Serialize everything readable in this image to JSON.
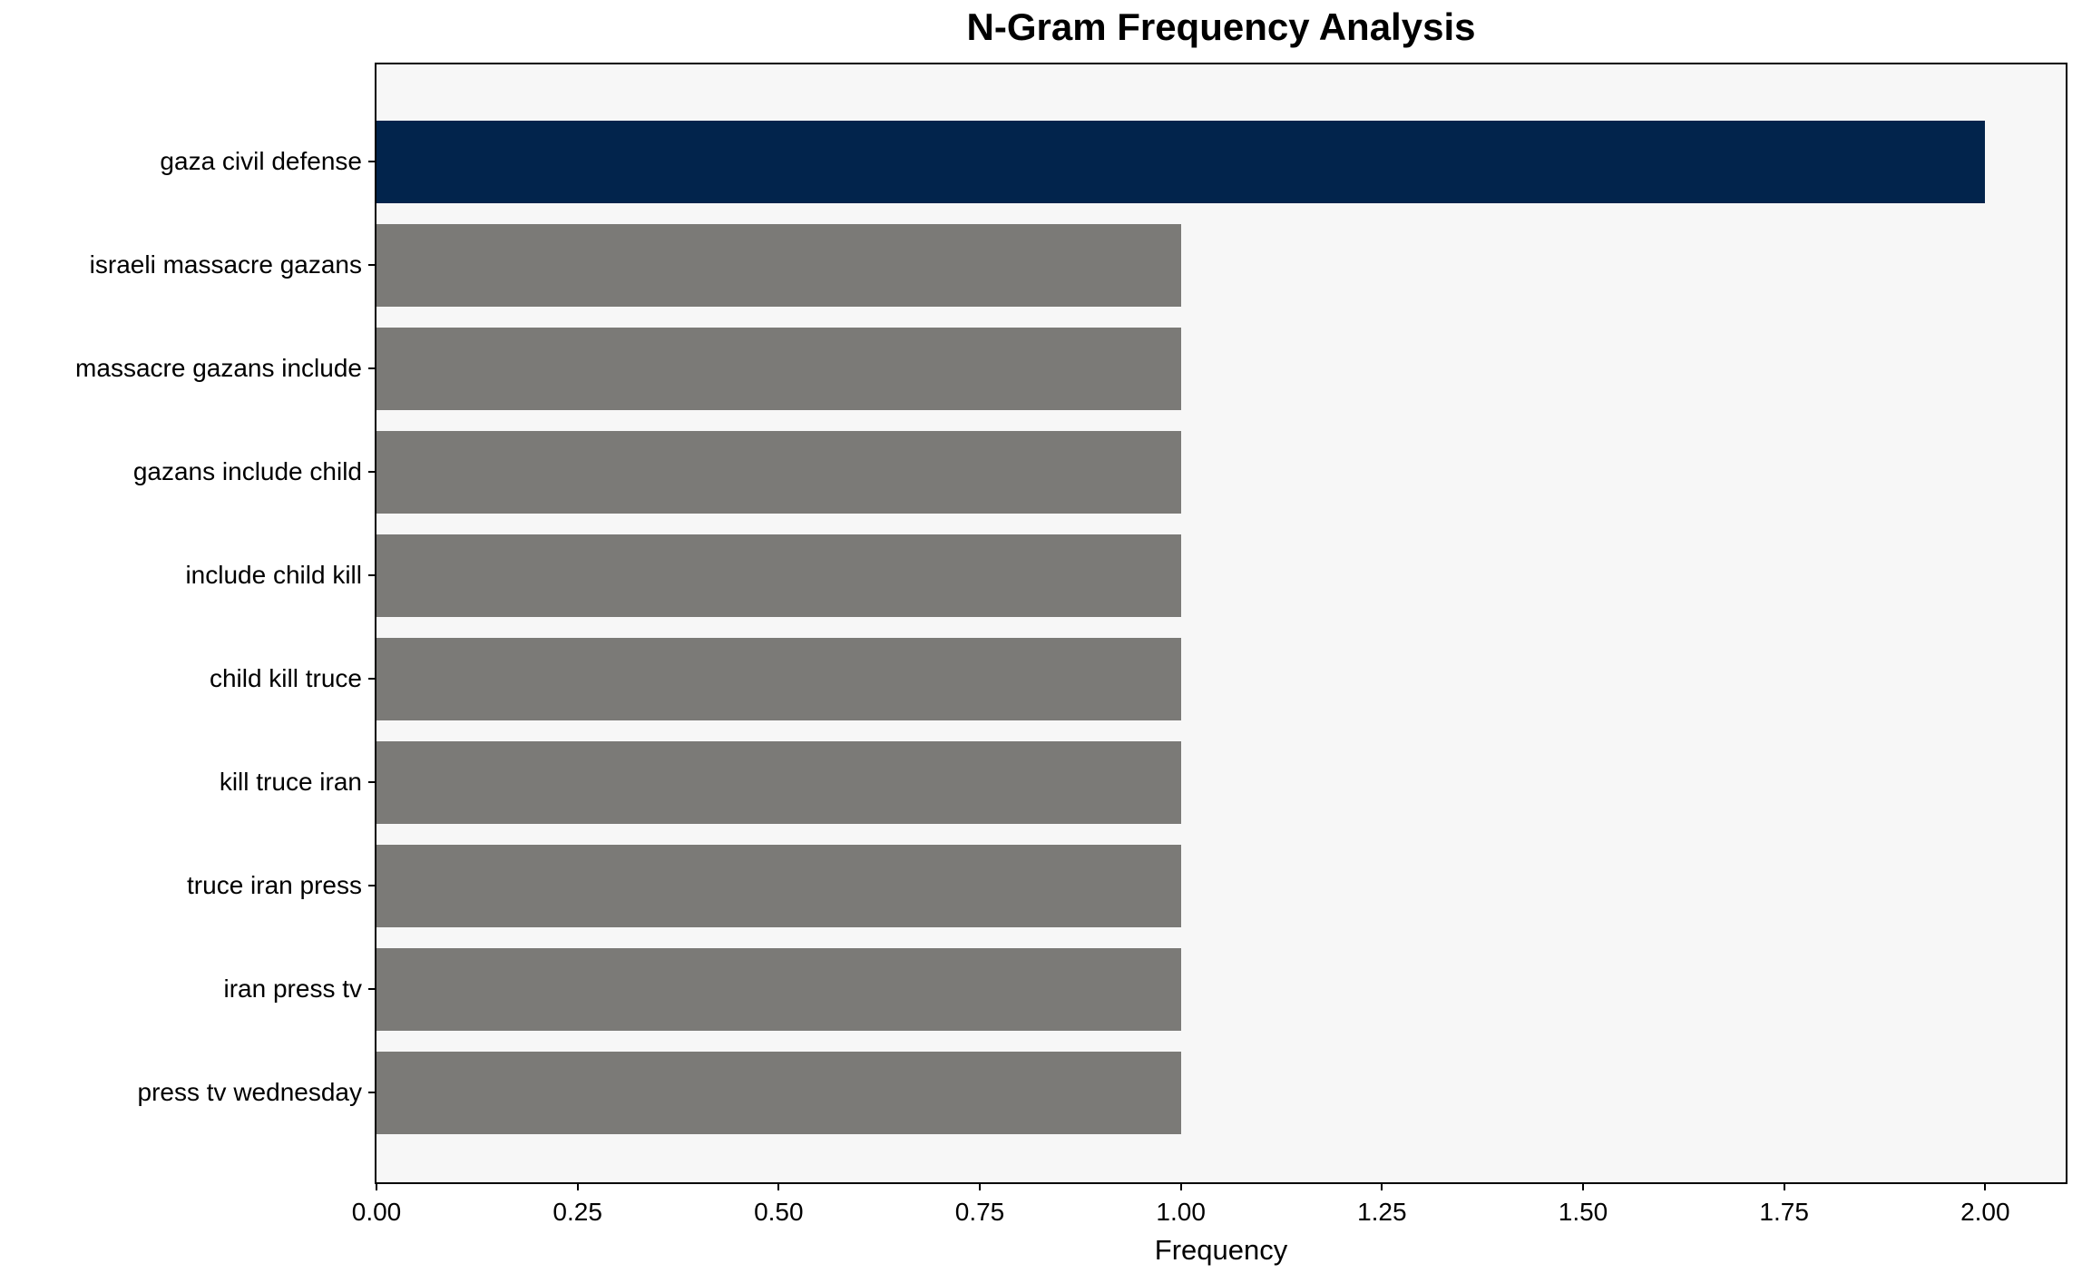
{
  "chart_data": {
    "type": "bar",
    "orientation": "horizontal",
    "title": "N-Gram Frequency Analysis",
    "xlabel": "Frequency",
    "ylabel": "",
    "categories": [
      "gaza civil defense",
      "israeli massacre gazans",
      "massacre gazans include",
      "gazans include child",
      "include child kill",
      "child kill truce",
      "kill truce iran",
      "truce iran press",
      "iran press tv",
      "press tv wednesday"
    ],
    "values": [
      2,
      1,
      1,
      1,
      1,
      1,
      1,
      1,
      1,
      1
    ],
    "bar_colors": [
      "#02244c",
      "#7b7a77",
      "#7b7a77",
      "#7b7a77",
      "#7b7a77",
      "#7b7a77",
      "#7b7a77",
      "#7b7a77",
      "#7b7a77",
      "#7b7a77"
    ],
    "xlim": [
      0,
      2.1
    ],
    "x_tick_values": [
      0,
      0.25,
      0.5,
      0.75,
      1.0,
      1.25,
      1.5,
      1.75,
      2.0
    ],
    "x_tick_labels": [
      "0.00",
      "0.25",
      "0.50",
      "0.75",
      "1.00",
      "1.25",
      "1.50",
      "1.75",
      "2.00"
    ],
    "grid": false,
    "legend": false,
    "colors": {
      "highlight_bar": "#02244c",
      "default_bar": "#7b7a77",
      "plot_background": "#f7f7f7",
      "figure_background": "#ffffff",
      "text": "#000000",
      "spine": "#000000"
    }
  }
}
